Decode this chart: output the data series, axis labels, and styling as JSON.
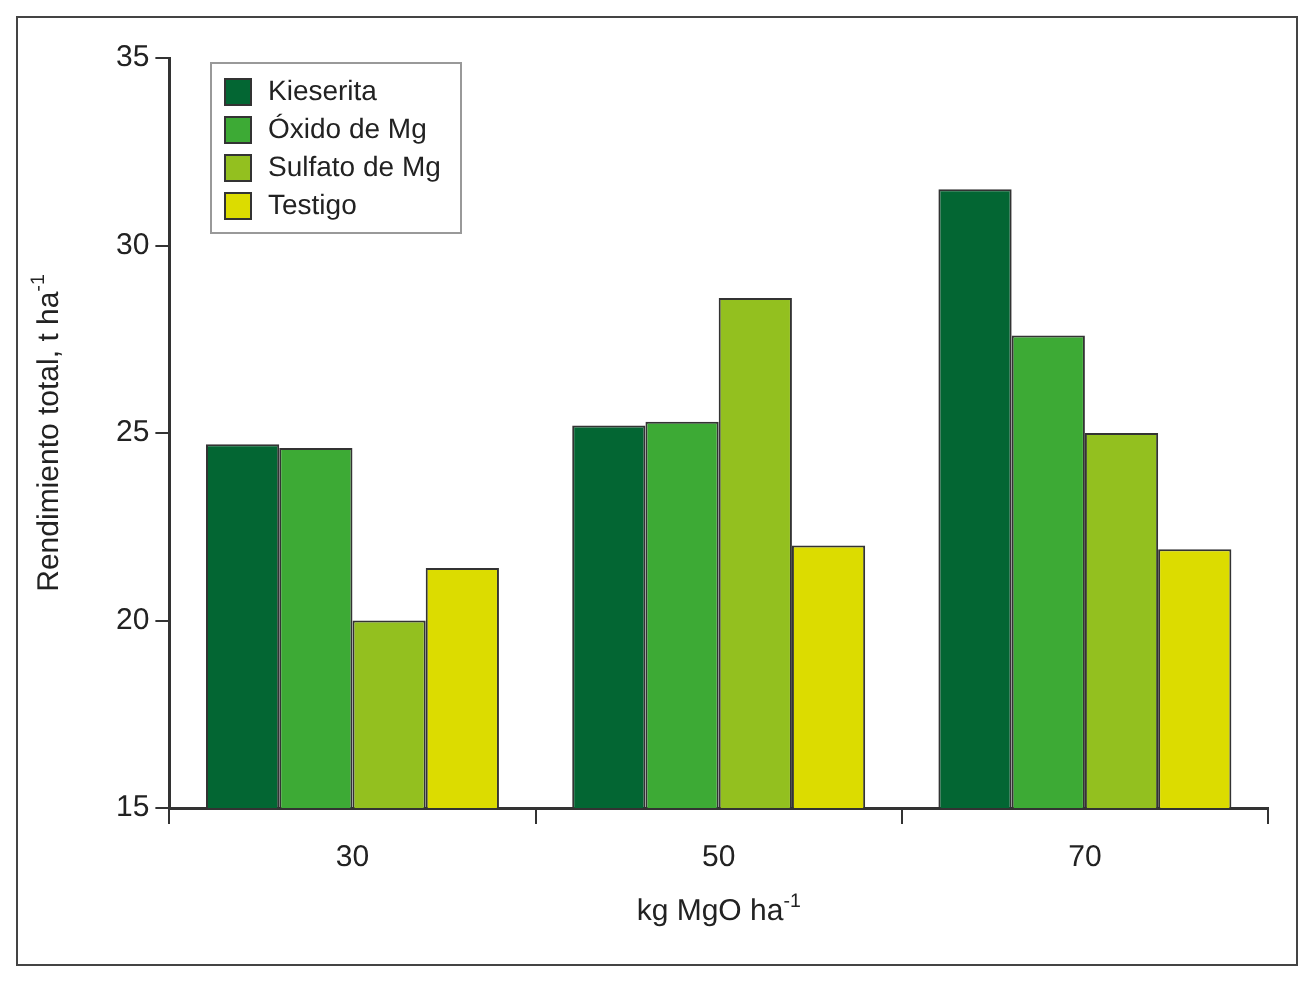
{
  "chart_data": {
    "type": "bar",
    "xlabel": "kg MgO ha$^{-1}$",
    "ylabel": "Rendimiento total, t ha$^{-1}$",
    "categories": [
      "30",
      "50",
      "70"
    ],
    "series": [
      {
        "name": "Kieserita",
        "color": "#036633",
        "values": [
          24.7,
          25.2,
          31.5
        ]
      },
      {
        "name": "Óxido de Mg",
        "color": "#3daa35",
        "values": [
          24.6,
          25.3,
          27.6
        ]
      },
      {
        "name": "Sulfato de Mg",
        "color": "#93c01f",
        "values": [
          20.0,
          28.6,
          25.0
        ]
      },
      {
        "name": "Testigo",
        "color": "#dcdc00",
        "values": [
          21.4,
          22.0,
          21.9
        ]
      }
    ],
    "ylim": [
      15,
      35
    ],
    "yticks": [
      15,
      20,
      25,
      30,
      35
    ],
    "grid": false,
    "legend": "top left"
  }
}
